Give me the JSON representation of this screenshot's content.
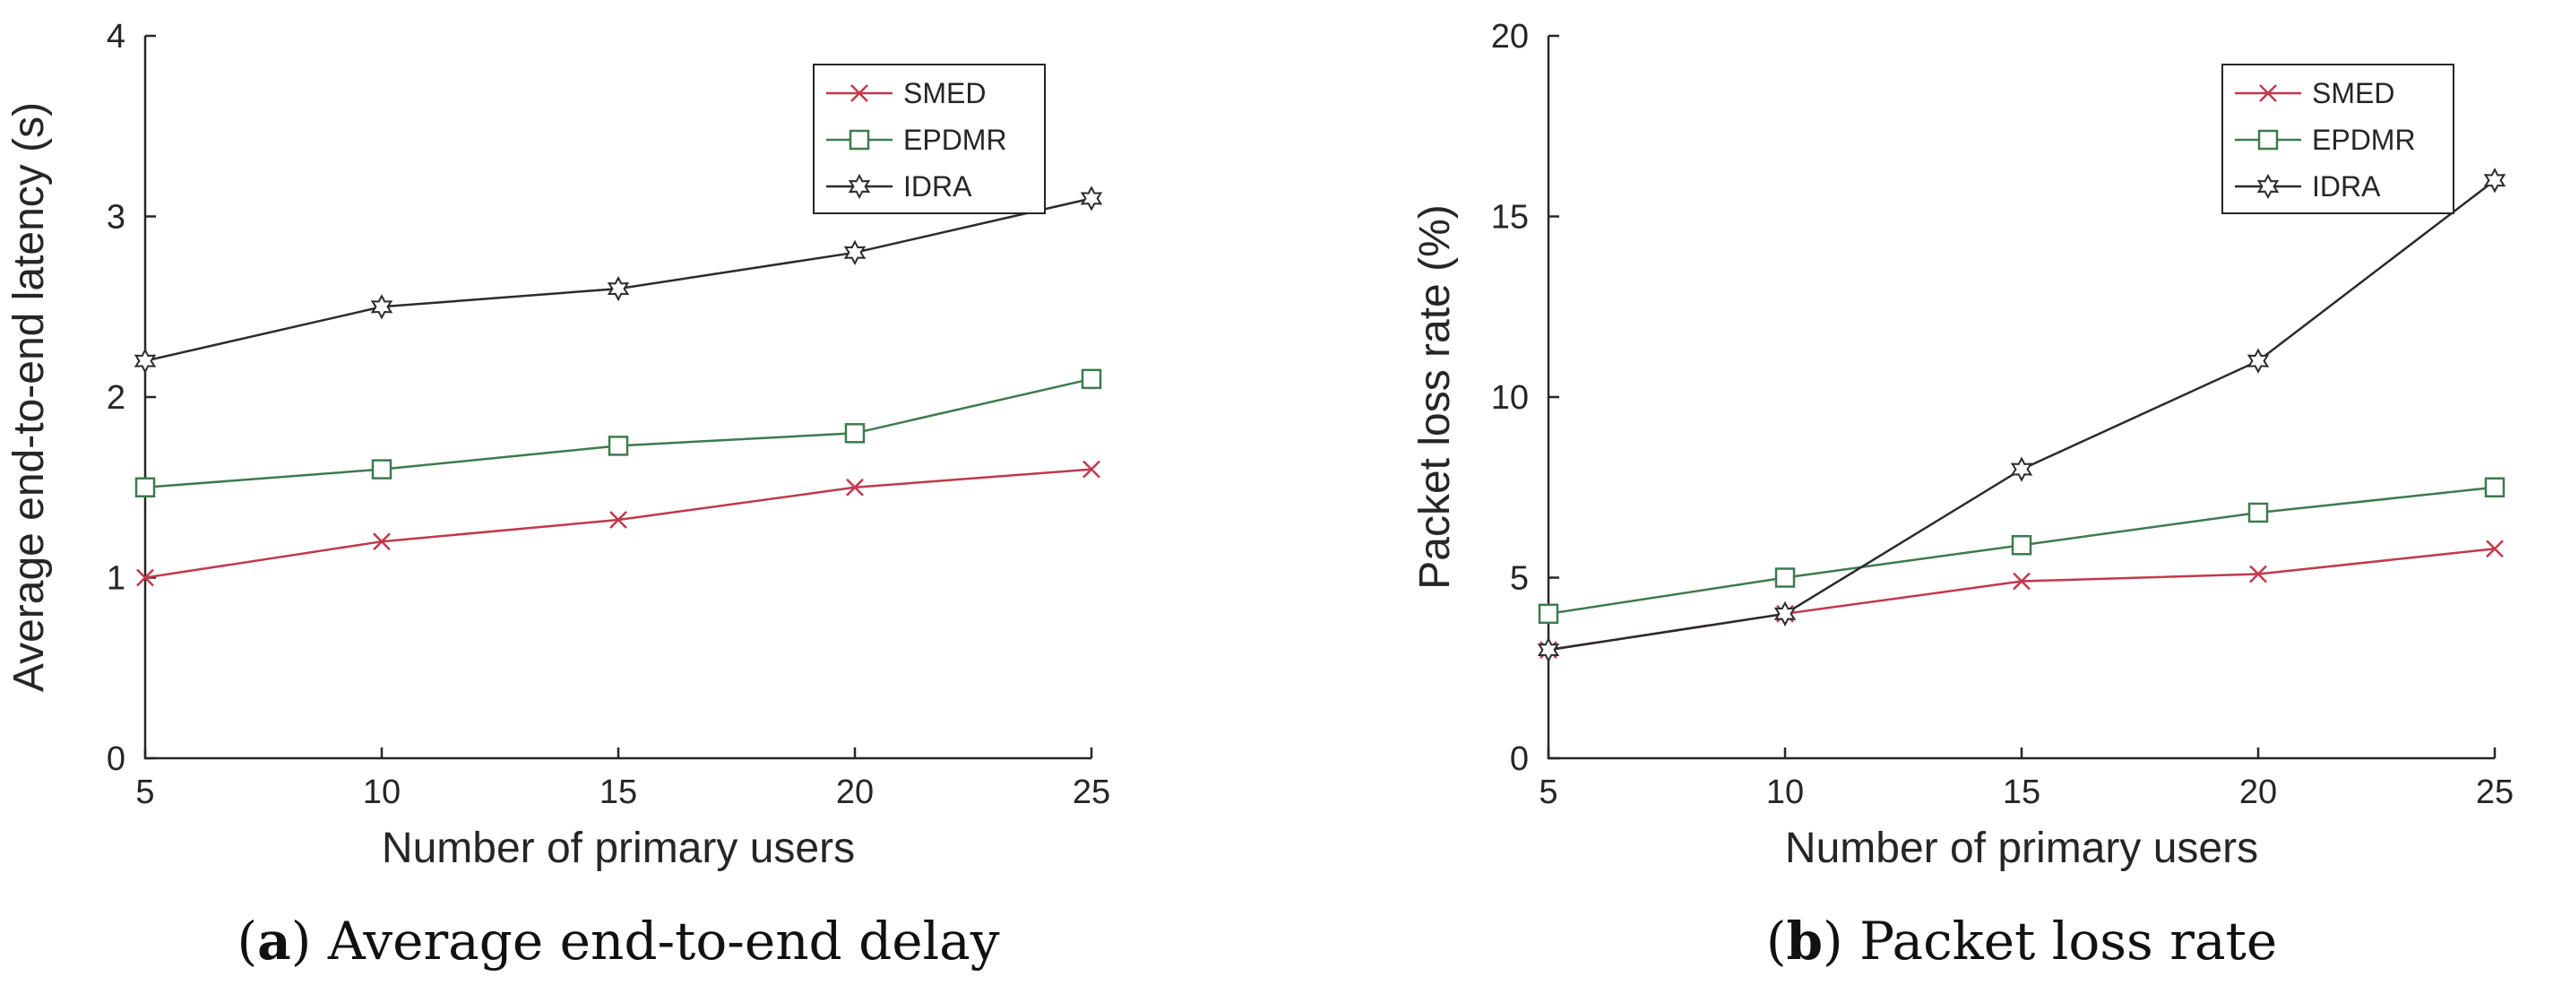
{
  "chart_data": [
    {
      "type": "line",
      "title": "",
      "xlabel": "Number of primary users",
      "ylabel": "Average end-to-end latency (s)",
      "x": [
        5,
        10,
        15,
        20,
        25
      ],
      "xlim": [
        5,
        25
      ],
      "ylim": [
        0,
        4
      ],
      "xticks": [
        "5",
        "10",
        "15",
        "20",
        "25"
      ],
      "yticks": [
        "0",
        "1",
        "2",
        "3",
        "4"
      ],
      "legend_position": "top-right",
      "caption_label": "a",
      "caption_text": " Average end-to-end delay",
      "series": [
        {
          "name": "SMED",
          "color": "#c0394b",
          "marker": "x",
          "values": [
            1.0,
            1.2,
            1.32,
            1.5,
            1.6
          ]
        },
        {
          "name": "EPDMR",
          "color": "#3d7a4e",
          "marker": "square",
          "values": [
            1.5,
            1.6,
            1.73,
            1.8,
            2.1
          ]
        },
        {
          "name": "IDRA",
          "color": "#2b2b2b",
          "marker": "star",
          "values": [
            2.2,
            2.5,
            2.6,
            2.8,
            3.1
          ]
        }
      ]
    },
    {
      "type": "line",
      "title": "",
      "xlabel": "Number of primary users",
      "ylabel": "Packet loss rate (%)",
      "x": [
        5,
        10,
        15,
        20,
        25
      ],
      "xlim": [
        5,
        25
      ],
      "ylim": [
        0,
        20
      ],
      "xticks": [
        "5",
        "10",
        "15",
        "20",
        "25"
      ],
      "yticks": [
        "0",
        "5",
        "10",
        "15",
        "20"
      ],
      "legend_position": "top-right",
      "caption_label": "b",
      "caption_text": " Packet loss rate",
      "series": [
        {
          "name": "SMED",
          "color": "#c0394b",
          "marker": "x",
          "values": [
            3.0,
            4.0,
            4.9,
            5.1,
            5.8
          ]
        },
        {
          "name": "EPDMR",
          "color": "#3d7a4e",
          "marker": "square",
          "values": [
            4.0,
            5.0,
            5.9,
            6.8,
            7.5
          ]
        },
        {
          "name": "IDRA",
          "color": "#2b2b2b",
          "marker": "star",
          "values": [
            3.0,
            4.0,
            8.0,
            11.0,
            16.0
          ]
        }
      ]
    }
  ]
}
